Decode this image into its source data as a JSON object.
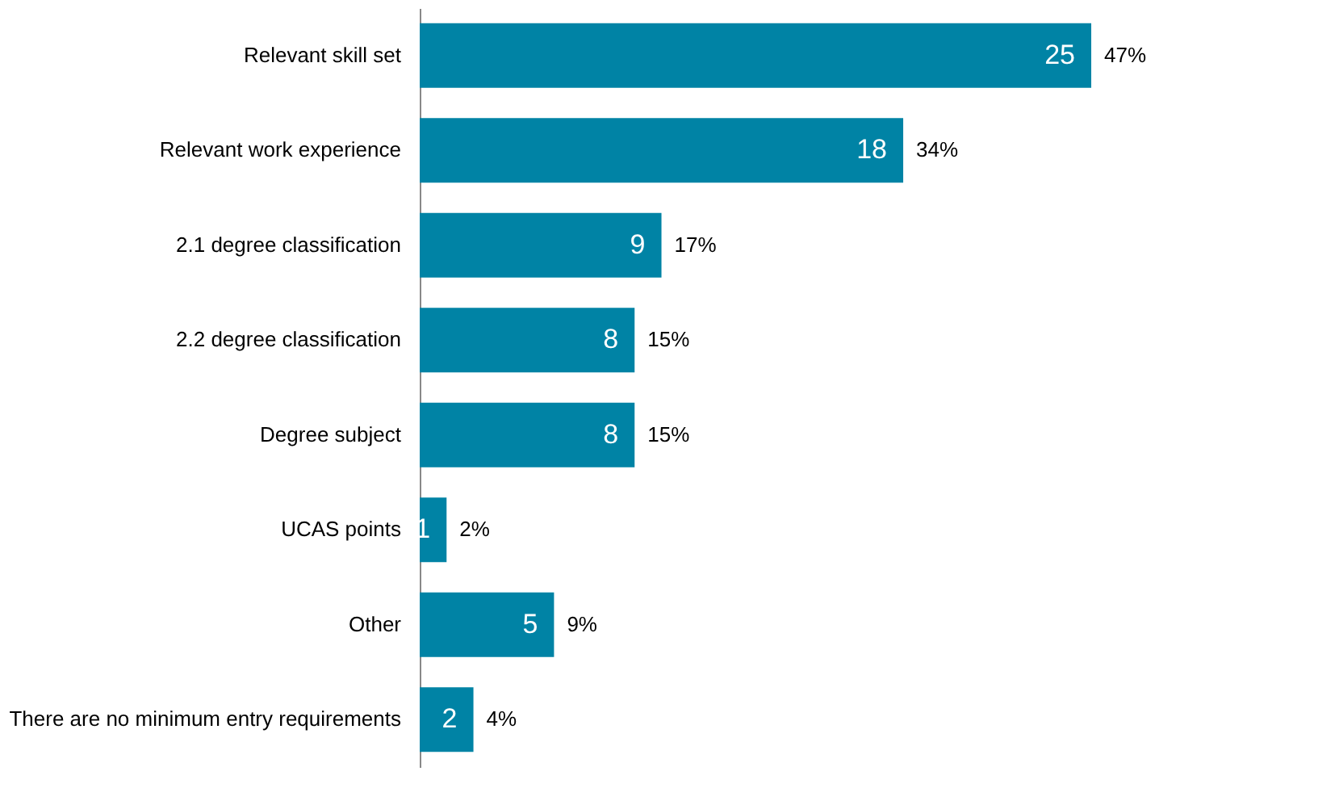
{
  "chart_data": {
    "type": "bar",
    "orientation": "horizontal",
    "categories": [
      "Relevant skill set",
      "Relevant work experience",
      "2.1 degree classification",
      "2.2 degree classification",
      "Degree subject",
      "UCAS points",
      "Other",
      "There are no minimum entry requirements"
    ],
    "values": [
      25,
      18,
      9,
      8,
      8,
      1,
      5,
      2
    ],
    "color": "#0083a5",
    "data_labels": true,
    "annotations": [
      {
        "text": "47%",
        "x": 25,
        "y": "Relevant skill set"
      },
      {
        "text": "34%",
        "x": 18,
        "y": "Relevant work experience"
      },
      {
        "text": "17%",
        "x": 9,
        "y": "2.1 degree classification"
      },
      {
        "text": "15%",
        "x": 8,
        "y": "2.2 degree classification"
      },
      {
        "text": "15%",
        "x": 8,
        "y": "Degree subject"
      },
      {
        "text": "2%",
        "x": 1,
        "y": "UCAS points"
      },
      {
        "text": "9%",
        "x": 5,
        "y": "Other"
      },
      {
        "text": "4%",
        "x": 2,
        "y": "There are no minimum entry requirements"
      }
    ]
  }
}
